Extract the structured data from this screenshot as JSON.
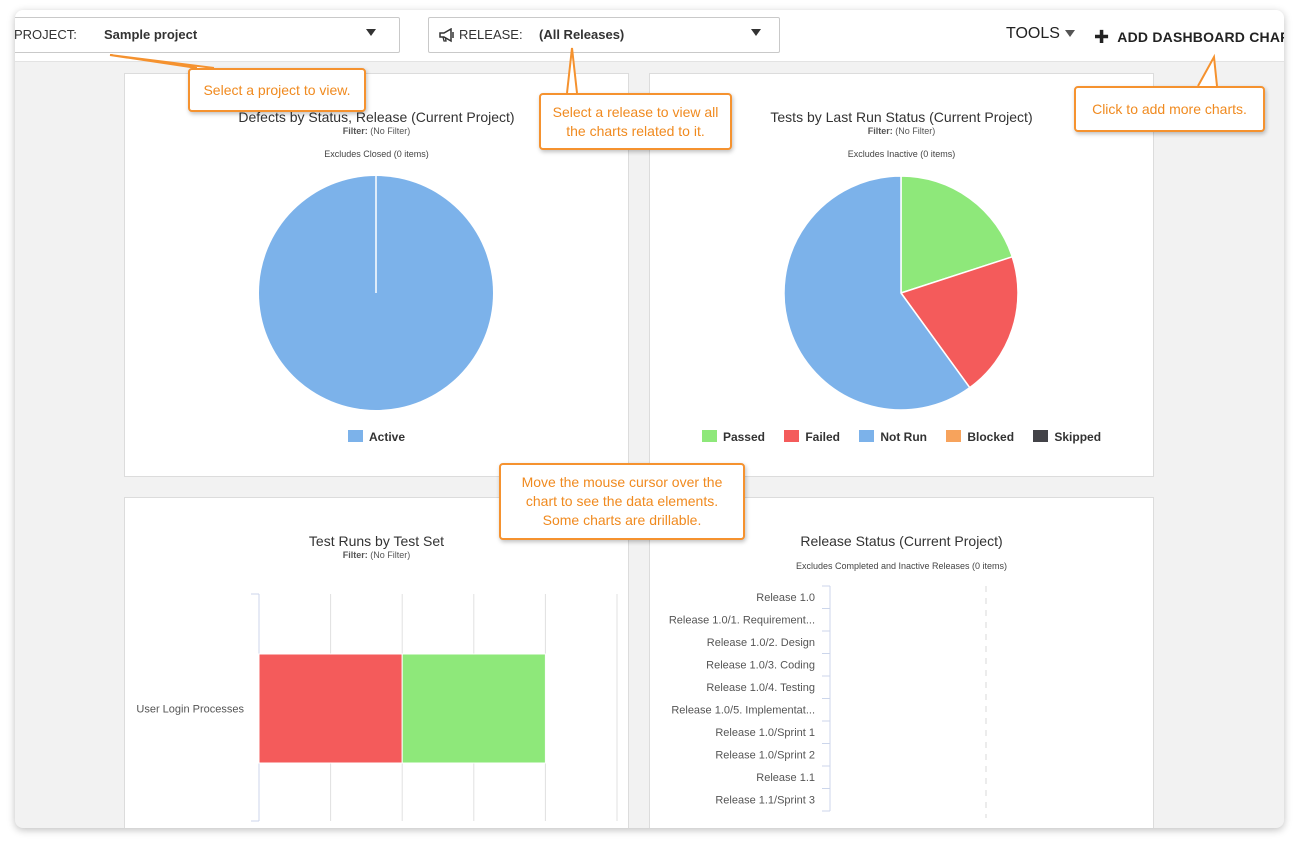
{
  "toolbar": {
    "project_label": "PROJECT:",
    "project_value": "Sample project",
    "release_label": "RELEASE:",
    "release_value": "(All Releases)",
    "tools_label": "TOOLS",
    "add_chart_label": "ADD DASHBOARD CHAR"
  },
  "callouts": {
    "project": "Select a project to view.",
    "release": "Select a release to view all the charts related to it.",
    "add_charts": "Click to add more charts.",
    "mouse": "Move the mouse cursor over the chart to see the data elements. Some charts are drillable."
  },
  "charts": {
    "defects": {
      "title": "Defects by Status, Release (Current Project)",
      "filter_label": "Filter:",
      "filter_value": "(No Filter)",
      "excludes": "Excludes Closed (0 items)"
    },
    "tests": {
      "title": "Tests by Last Run Status (Current Project)",
      "filter_label": "Filter:",
      "filter_value": "(No Filter)",
      "excludes": "Excludes Inactive (0 items)"
    },
    "runs": {
      "title": "Test Runs by Test Set",
      "filter_label": "Filter:",
      "filter_value": "(No Filter)"
    },
    "release": {
      "title": "Release Status (Current Project)",
      "excludes": "Excludes Completed and Inactive Releases (0 items)"
    }
  },
  "colors": {
    "passed": "#8ee87a",
    "failed": "#f45b5b",
    "not_run": "#7cb2ea",
    "blocked": "#f7a35c",
    "skipped": "#434348",
    "active": "#7cb2ea",
    "callout": "#f5922f"
  },
  "chart_data": [
    {
      "type": "pie",
      "title": "Defects by Status, Release (Current Project)",
      "slices": [
        {
          "label": "Active",
          "value": 100
        }
      ],
      "legend": [
        "Active"
      ]
    },
    {
      "type": "pie",
      "title": "Tests by Last Run Status (Current Project)",
      "slices": [
        {
          "label": "Passed",
          "value": 20
        },
        {
          "label": "Failed",
          "value": 20
        },
        {
          "label": "Not Run",
          "value": 60
        },
        {
          "label": "Blocked",
          "value": 0
        },
        {
          "label": "Skipped",
          "value": 0
        }
      ],
      "legend": [
        "Passed",
        "Failed",
        "Not Run",
        "Blocked",
        "Skipped"
      ]
    },
    {
      "type": "bar",
      "orientation": "horizontal",
      "stacked": true,
      "title": "Test Runs by Test Set",
      "categories": [
        "User Login Processes"
      ],
      "series": [
        {
          "values": [
            2
          ],
          "color": "#f45b5b"
        },
        {
          "values": [
            2
          ],
          "color": "#8ee87a"
        }
      ],
      "xlim": [
        0,
        5
      ],
      "x_ticks": [
        "0",
        "1",
        "2",
        "3",
        "4",
        "5"
      ]
    },
    {
      "type": "bar",
      "orientation": "horizontal",
      "title": "Release Status (Current Project)",
      "categories": [
        "Release 1.0",
        "Release 1.0/1. Requirement...",
        "Release 1.0/2. Design",
        "Release 1.0/3. Coding",
        "Release 1.0/4. Testing",
        "Release 1.0/5. Implementat...",
        "Release 1.0/Sprint 1",
        "Release 1.0/Sprint 2",
        "Release 1.1",
        "Release 1.1/Sprint 3"
      ],
      "values": [
        0,
        0,
        0,
        0,
        0,
        0,
        0,
        0,
        0,
        0
      ],
      "x_ticks": [
        "0"
      ]
    }
  ]
}
